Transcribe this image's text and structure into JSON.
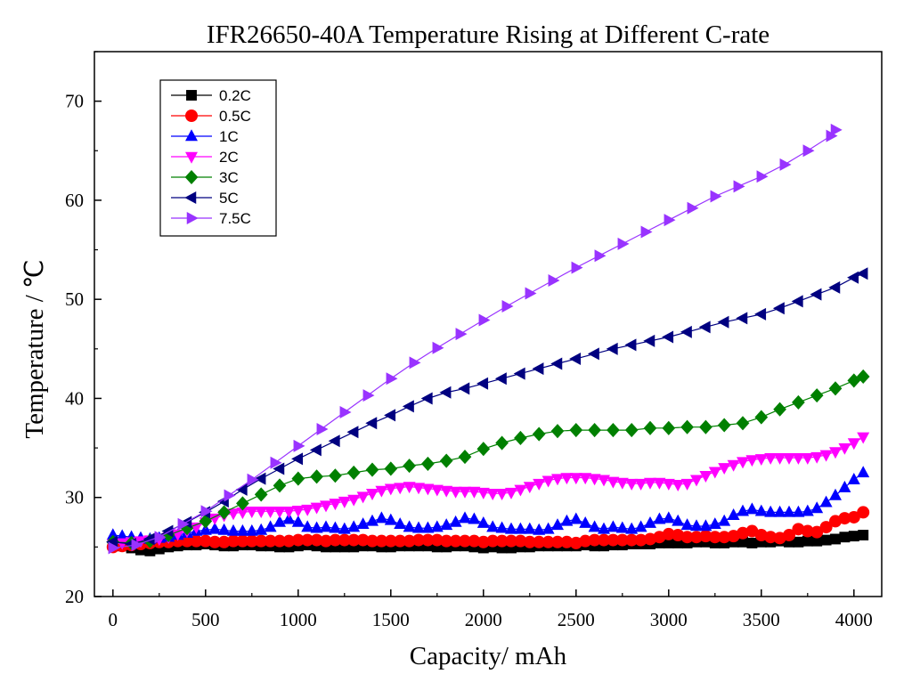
{
  "chart_data": {
    "type": "line",
    "title": "IFR26650-40A Temperature Rising at Different C-rate",
    "xlabel": "Capacity/ mAh",
    "ylabel": "Temperature / ℃",
    "xlim": [
      -100,
      4150
    ],
    "ylim": [
      20,
      75
    ],
    "xticks": [
      0,
      500,
      1000,
      1500,
      2000,
      2500,
      3000,
      3500,
      4000
    ],
    "xtick_labels": [
      "0",
      "500",
      "1000",
      "1500",
      "2000",
      "2500",
      "3000",
      "3500",
      "4000"
    ],
    "yticks": [
      20,
      30,
      40,
      50,
      60,
      70
    ],
    "ytick_labels": [
      "20",
      "30",
      "40",
      "50",
      "60",
      "70"
    ],
    "grid": false,
    "legend_position": "top-left",
    "series": [
      {
        "name": "0.2C",
        "color": "#000000",
        "marker": "square",
        "x": [
          0,
          50,
          100,
          150,
          200,
          250,
          300,
          350,
          400,
          450,
          500,
          550,
          600,
          650,
          700,
          750,
          800,
          850,
          900,
          950,
          1000,
          1050,
          1100,
          1150,
          1200,
          1250,
          1300,
          1350,
          1400,
          1450,
          1500,
          1550,
          1600,
          1650,
          1700,
          1750,
          1800,
          1850,
          1900,
          1950,
          2000,
          2050,
          2100,
          2150,
          2200,
          2250,
          2300,
          2350,
          2400,
          2450,
          2500,
          2550,
          2600,
          2650,
          2700,
          2750,
          2800,
          2850,
          2900,
          2950,
          3000,
          3050,
          3100,
          3150,
          3200,
          3250,
          3300,
          3350,
          3400,
          3450,
          3500,
          3550,
          3600,
          3650,
          3700,
          3750,
          3800,
          3850,
          3900,
          3950,
          4000,
          4050
        ],
        "y": [
          25.2,
          25.1,
          24.9,
          24.7,
          24.6,
          24.8,
          25.0,
          25.1,
          25.2,
          25.2,
          25.3,
          25.2,
          25.1,
          25.1,
          25.2,
          25.2,
          25.1,
          25.1,
          25.0,
          25.0,
          25.1,
          25.2,
          25.1,
          25.0,
          25.0,
          25.0,
          25.0,
          25.1,
          25.1,
          25.0,
          25.0,
          25.1,
          25.1,
          25.1,
          25.1,
          25.0,
          25.0,
          25.1,
          25.1,
          25.0,
          24.9,
          25.0,
          24.9,
          24.9,
          25.0,
          25.0,
          25.1,
          25.1,
          25.1,
          25.1,
          25.1,
          25.2,
          25.1,
          25.1,
          25.2,
          25.2,
          25.3,
          25.3,
          25.3,
          25.4,
          25.4,
          25.4,
          25.4,
          25.5,
          25.5,
          25.4,
          25.4,
          25.5,
          25.5,
          25.4,
          25.5,
          25.5,
          25.6,
          25.5,
          25.5,
          25.6,
          25.6,
          25.7,
          25.8,
          26.0,
          26.1,
          26.2
        ]
      },
      {
        "name": "0.5C",
        "color": "#ff0000",
        "marker": "circle",
        "x": [
          0,
          50,
          100,
          150,
          200,
          250,
          300,
          350,
          400,
          450,
          500,
          550,
          600,
          650,
          700,
          750,
          800,
          850,
          900,
          950,
          1000,
          1050,
          1100,
          1150,
          1200,
          1250,
          1300,
          1350,
          1400,
          1450,
          1500,
          1550,
          1600,
          1650,
          1700,
          1750,
          1800,
          1850,
          1900,
          1950,
          2000,
          2050,
          2100,
          2150,
          2200,
          2250,
          2300,
          2350,
          2400,
          2450,
          2500,
          2550,
          2600,
          2650,
          2700,
          2750,
          2800,
          2850,
          2900,
          2950,
          3000,
          3050,
          3100,
          3150,
          3200,
          3250,
          3300,
          3350,
          3400,
          3450,
          3500,
          3550,
          3600,
          3650,
          3700,
          3750,
          3800,
          3850,
          3900,
          3950,
          4000,
          4050
        ],
        "y": [
          25.0,
          25.1,
          25.2,
          25.3,
          25.4,
          25.5,
          25.5,
          25.6,
          25.6,
          25.6,
          25.6,
          25.5,
          25.5,
          25.6,
          25.6,
          25.6,
          25.6,
          25.6,
          25.6,
          25.6,
          25.7,
          25.7,
          25.7,
          25.6,
          25.7,
          25.7,
          25.7,
          25.7,
          25.6,
          25.6,
          25.6,
          25.6,
          25.6,
          25.7,
          25.7,
          25.7,
          25.6,
          25.6,
          25.6,
          25.6,
          25.5,
          25.6,
          25.6,
          25.6,
          25.6,
          25.5,
          25.5,
          25.5,
          25.5,
          25.5,
          25.4,
          25.6,
          25.7,
          25.7,
          25.7,
          25.7,
          25.7,
          25.7,
          25.8,
          26.0,
          26.3,
          26.2,
          26.0,
          26.0,
          26.1,
          26.0,
          26.0,
          26.1,
          26.4,
          26.6,
          26.2,
          26.0,
          25.9,
          26.2,
          26.8,
          26.6,
          26.5,
          27.0,
          27.6,
          27.9,
          28.0,
          28.5
        ]
      },
      {
        "name": "1C",
        "color": "#0000ff",
        "marker": "triangle-up",
        "x": [
          0,
          50,
          100,
          150,
          200,
          250,
          300,
          350,
          400,
          450,
          500,
          550,
          600,
          650,
          700,
          750,
          800,
          850,
          900,
          950,
          1000,
          1050,
          1100,
          1150,
          1200,
          1250,
          1300,
          1350,
          1400,
          1450,
          1500,
          1550,
          1600,
          1650,
          1700,
          1750,
          1800,
          1850,
          1900,
          1950,
          2000,
          2050,
          2100,
          2150,
          2200,
          2250,
          2300,
          2350,
          2400,
          2450,
          2500,
          2550,
          2600,
          2650,
          2700,
          2750,
          2800,
          2850,
          2900,
          2950,
          3000,
          3050,
          3100,
          3150,
          3200,
          3250,
          3300,
          3350,
          3400,
          3450,
          3500,
          3550,
          3600,
          3650,
          3700,
          3750,
          3800,
          3850,
          3900,
          3950,
          4000,
          4050
        ],
        "y": [
          26.2,
          26.1,
          26.0,
          25.9,
          25.8,
          25.9,
          26.0,
          26.2,
          26.4,
          26.6,
          26.7,
          26.8,
          26.7,
          26.6,
          26.6,
          26.6,
          26.7,
          27.0,
          27.5,
          27.8,
          27.5,
          27.0,
          26.9,
          27.0,
          26.9,
          26.8,
          27.0,
          27.3,
          27.6,
          27.9,
          27.7,
          27.3,
          27.0,
          26.9,
          26.9,
          27.0,
          27.2,
          27.5,
          27.9,
          27.8,
          27.4,
          27.0,
          26.9,
          26.8,
          26.8,
          26.8,
          26.7,
          26.8,
          27.2,
          27.6,
          27.8,
          27.4,
          27.0,
          26.8,
          27.0,
          26.9,
          26.8,
          27.0,
          27.4,
          27.8,
          27.9,
          27.6,
          27.2,
          27.1,
          27.1,
          27.3,
          27.6,
          28.2,
          28.6,
          28.8,
          28.6,
          28.5,
          28.5,
          28.5,
          28.5,
          28.6,
          28.9,
          29.5,
          30.2,
          31.0,
          31.8,
          32.5
        ]
      },
      {
        "name": "2C",
        "color": "#ff00ff",
        "marker": "triangle-down",
        "x": [
          0,
          50,
          100,
          150,
          200,
          250,
          300,
          350,
          400,
          450,
          500,
          550,
          600,
          650,
          700,
          750,
          800,
          850,
          900,
          950,
          1000,
          1050,
          1100,
          1150,
          1200,
          1250,
          1300,
          1350,
          1400,
          1450,
          1500,
          1550,
          1600,
          1650,
          1700,
          1750,
          1800,
          1850,
          1900,
          1950,
          2000,
          2050,
          2100,
          2150,
          2200,
          2250,
          2300,
          2350,
          2400,
          2450,
          2500,
          2550,
          2600,
          2650,
          2700,
          2750,
          2800,
          2850,
          2900,
          2950,
          3000,
          3050,
          3100,
          3150,
          3200,
          3250,
          3300,
          3350,
          3400,
          3450,
          3500,
          3550,
          3600,
          3650,
          3700,
          3750,
          3800,
          3850,
          3900,
          3950,
          4000,
          4050
        ],
        "y": [
          25.3,
          25.4,
          25.5,
          25.6,
          25.7,
          25.8,
          26.0,
          26.3,
          26.6,
          27.0,
          27.5,
          27.9,
          28.2,
          28.4,
          28.5,
          28.6,
          28.6,
          28.6,
          28.6,
          28.6,
          28.7,
          28.8,
          29.0,
          29.2,
          29.4,
          29.6,
          29.8,
          30.1,
          30.4,
          30.7,
          30.9,
          31.0,
          31.1,
          31.0,
          30.9,
          30.8,
          30.7,
          30.6,
          30.6,
          30.6,
          30.5,
          30.4,
          30.4,
          30.5,
          30.8,
          31.1,
          31.4,
          31.7,
          31.9,
          32.0,
          32.0,
          32.0,
          31.9,
          31.8,
          31.6,
          31.5,
          31.4,
          31.4,
          31.5,
          31.5,
          31.4,
          31.3,
          31.4,
          31.8,
          32.2,
          32.6,
          33.0,
          33.3,
          33.6,
          33.8,
          33.9,
          34.0,
          34.0,
          34.0,
          34.0,
          34.0,
          34.1,
          34.3,
          34.6,
          35.0,
          35.5,
          36.1
        ]
      },
      {
        "name": "3C",
        "color": "#008000",
        "marker": "diamond",
        "x": [
          0,
          100,
          200,
          300,
          400,
          500,
          600,
          700,
          800,
          900,
          1000,
          1100,
          1200,
          1300,
          1400,
          1500,
          1600,
          1700,
          1800,
          1900,
          2000,
          2100,
          2200,
          2300,
          2400,
          2500,
          2600,
          2700,
          2800,
          2900,
          3000,
          3100,
          3200,
          3300,
          3400,
          3500,
          3600,
          3700,
          3800,
          3900,
          4000,
          4050
        ],
        "y": [
          25.5,
          25.4,
          25.6,
          26.2,
          26.9,
          27.6,
          28.5,
          29.4,
          30.3,
          31.2,
          31.9,
          32.1,
          32.2,
          32.5,
          32.8,
          32.9,
          33.2,
          33.4,
          33.7,
          34.1,
          34.9,
          35.5,
          36.0,
          36.4,
          36.7,
          36.8,
          36.8,
          36.8,
          36.8,
          37.0,
          37.0,
          37.1,
          37.1,
          37.3,
          37.5,
          38.1,
          38.9,
          39.6,
          40.3,
          41.0,
          41.8,
          42.2
        ]
      },
      {
        "name": "5C",
        "color": "#000080",
        "marker": "triangle-left",
        "x": [
          0,
          100,
          200,
          300,
          400,
          500,
          600,
          700,
          800,
          900,
          1000,
          1100,
          1200,
          1300,
          1400,
          1500,
          1600,
          1700,
          1800,
          1900,
          2000,
          2100,
          2200,
          2300,
          2400,
          2500,
          2600,
          2700,
          2800,
          2900,
          3000,
          3100,
          3200,
          3300,
          3400,
          3500,
          3600,
          3700,
          3800,
          3900,
          4000,
          4050
        ],
        "y": [
          25.5,
          25.3,
          25.8,
          26.6,
          27.5,
          28.5,
          29.6,
          30.8,
          31.9,
          32.9,
          33.9,
          34.8,
          35.7,
          36.6,
          37.5,
          38.3,
          39.2,
          40.0,
          40.6,
          41.0,
          41.5,
          42.0,
          42.5,
          43.0,
          43.5,
          44.0,
          44.5,
          45.0,
          45.4,
          45.8,
          46.2,
          46.7,
          47.2,
          47.7,
          48.1,
          48.5,
          49.1,
          49.8,
          50.5,
          51.2,
          52.2,
          52.6
        ]
      },
      {
        "name": "7.5C",
        "color": "#9933ff",
        "marker": "triangle-right",
        "x": [
          0,
          125,
          250,
          375,
          500,
          625,
          750,
          875,
          1000,
          1125,
          1250,
          1375,
          1500,
          1625,
          1750,
          1875,
          2000,
          2125,
          2250,
          2375,
          2500,
          2625,
          2750,
          2875,
          3000,
          3125,
          3250,
          3375,
          3500,
          3625,
          3750,
          3875,
          3900
        ],
        "y": [
          24.9,
          25.2,
          26.0,
          27.3,
          28.6,
          30.2,
          31.8,
          33.5,
          35.2,
          36.9,
          38.6,
          40.3,
          42.0,
          43.6,
          45.1,
          46.5,
          47.9,
          49.3,
          50.6,
          51.9,
          53.2,
          54.4,
          55.6,
          56.8,
          58.0,
          59.2,
          60.4,
          61.4,
          62.4,
          63.6,
          65.0,
          66.5,
          67.1
        ]
      }
    ]
  }
}
